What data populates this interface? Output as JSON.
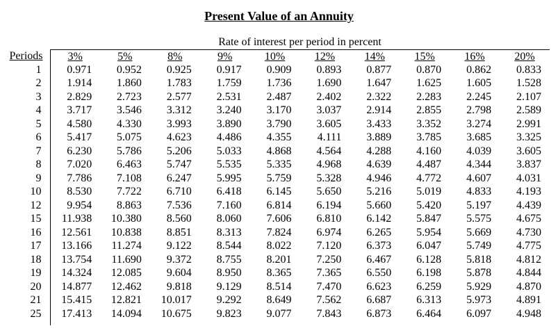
{
  "title": "Present Value of an Annuity",
  "table": {
    "group_header": "Rate of interest per period in percent",
    "periods_label": "Periods",
    "rate_headers": [
      "3%",
      "5%",
      "8%",
      "9%",
      "10%",
      "12%",
      "14%",
      "15%",
      "16%",
      "20%"
    ],
    "rows": [
      {
        "period": "1",
        "values": [
          "0.971",
          "0.952",
          "0.925",
          "0.917",
          "0.909",
          "0.893",
          "0.877",
          "0.870",
          "0.862",
          "0.833"
        ]
      },
      {
        "period": "2",
        "values": [
          "1.914",
          "1.860",
          "1.783",
          "1.759",
          "1.736",
          "1.690",
          "1.647",
          "1.625",
          "1.605",
          "1.528"
        ]
      },
      {
        "period": "3",
        "values": [
          "2.829",
          "2.723",
          "2.577",
          "2.531",
          "2.487",
          "2.402",
          "2.322",
          "2.283",
          "2.245",
          "2.107"
        ]
      },
      {
        "period": "4",
        "values": [
          "3.717",
          "3.546",
          "3.312",
          "3.240",
          "3.170",
          "3.037",
          "2.914",
          "2.855",
          "2.798",
          "2.589"
        ]
      },
      {
        "period": "5",
        "values": [
          "4.580",
          "4.330",
          "3.993",
          "3.890",
          "3.790",
          "3.605",
          "3.433",
          "3.352",
          "3.274",
          "2.991"
        ]
      },
      {
        "period": "6",
        "values": [
          "5.417",
          "5.075",
          "4.623",
          "4.486",
          "4.355",
          "4.111",
          "3.889",
          "3.785",
          "3.685",
          "3.325"
        ]
      },
      {
        "period": "7",
        "values": [
          "6.230",
          "5.786",
          "5.206",
          "5.033",
          "4.868",
          "4.564",
          "4.288",
          "4.160",
          "4.039",
          "3.605"
        ]
      },
      {
        "period": "8",
        "values": [
          "7.020",
          "6.463",
          "5.747",
          "5.535",
          "5.335",
          "4.968",
          "4.639",
          "4.487",
          "4.344",
          "3.837"
        ]
      },
      {
        "period": "9",
        "values": [
          "7.786",
          "7.108",
          "6.247",
          "5.995",
          "5.759",
          "5.328",
          "4.946",
          "4.772",
          "4.607",
          "4.031"
        ]
      },
      {
        "period": "10",
        "values": [
          "8.530",
          "7.722",
          "6.710",
          "6.418",
          "6.145",
          "5.650",
          "5.216",
          "5.019",
          "4.833",
          "4.193"
        ]
      },
      {
        "period": "12",
        "values": [
          "9.954",
          "8.863",
          "7.536",
          "7.160",
          "6.814",
          "6.194",
          "5.660",
          "5.420",
          "5.197",
          "4.439"
        ]
      },
      {
        "period": "15",
        "values": [
          "11.938",
          "10.380",
          "8.560",
          "8.060",
          "7.606",
          "6.810",
          "6.142",
          "5.847",
          "5.575",
          "4.675"
        ]
      },
      {
        "period": "16",
        "values": [
          "12.561",
          "10.838",
          "8.851",
          "8.313",
          "7.824",
          "6.974",
          "6.265",
          "5.954",
          "5.669",
          "4.730"
        ]
      },
      {
        "period": "17",
        "values": [
          "13.166",
          "11.274",
          "9.122",
          "8.544",
          "8.022",
          "7.120",
          "6.373",
          "6.047",
          "5.749",
          "4.775"
        ]
      },
      {
        "period": "18",
        "values": [
          "13.754",
          "11.690",
          "9.372",
          "8.755",
          "8.201",
          "7.250",
          "6.467",
          "6.128",
          "5.818",
          "4.812"
        ]
      },
      {
        "period": "19",
        "values": [
          "14.324",
          "12.085",
          "9.604",
          "8.950",
          "8.365",
          "7.365",
          "6.550",
          "6.198",
          "5.878",
          "4.844"
        ]
      },
      {
        "period": "20",
        "values": [
          "14.877",
          "12.462",
          "9.818",
          "9.129",
          "8.514",
          "7.470",
          "6.623",
          "6.259",
          "5.929",
          "4.870"
        ]
      },
      {
        "period": "21",
        "values": [
          "15.415",
          "12.821",
          "10.017",
          "9.292",
          "8.649",
          "7.562",
          "6.687",
          "6.313",
          "5.973",
          "4.891"
        ]
      },
      {
        "period": "25",
        "values": [
          "17.413",
          "14.094",
          "10.675",
          "9.823",
          "9.077",
          "7.843",
          "6.873",
          "6.464",
          "6.097",
          "4.948"
        ]
      }
    ]
  }
}
